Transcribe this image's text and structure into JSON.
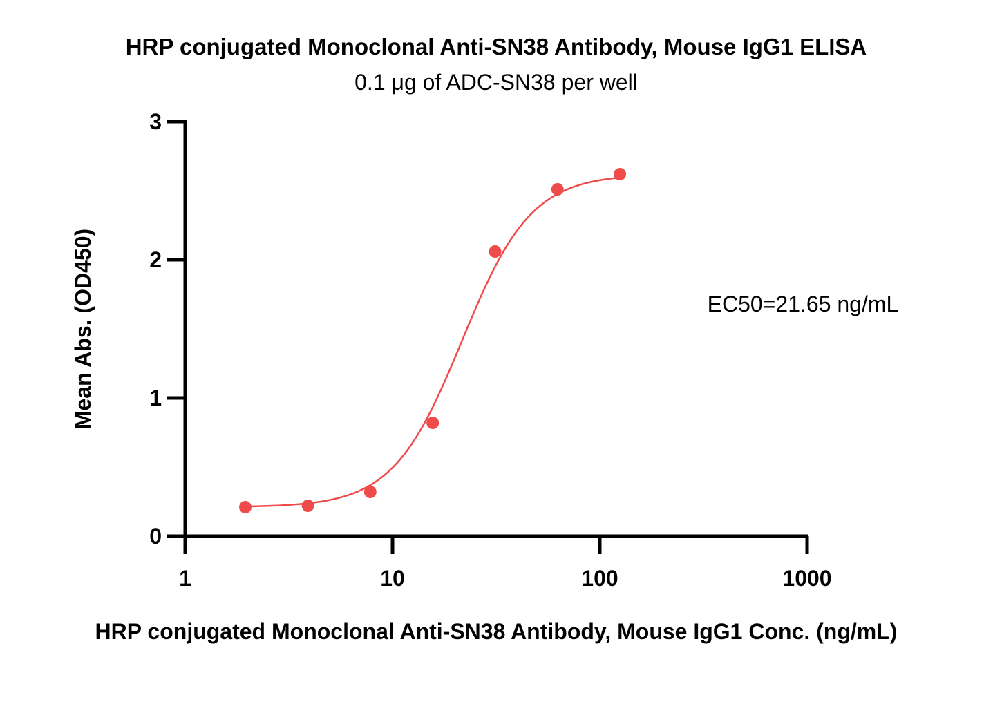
{
  "chart_data": {
    "type": "scatter",
    "title": "HRP conjugated Monoclonal Anti-SN38 Antibody, Mouse IgG1 ELISA",
    "subtitle": "0.1 μg of ADC-SN38 per well",
    "xlabel": "HRP conjugated Monoclonal Anti-SN38 Antibody, Mouse IgG1 Conc. (ng/mL)",
    "ylabel": "Mean Abs. (OD450)",
    "x_scale": "log",
    "xlim": [
      1,
      1000
    ],
    "ylim": [
      0,
      3
    ],
    "x_ticks": [
      "1",
      "10",
      "100",
      "1000"
    ],
    "y_ticks": [
      "0",
      "1",
      "2",
      "3"
    ],
    "grid": false,
    "annotation": "EC50=21.65 ng/mL",
    "color": "#f04b4b",
    "points": [
      {
        "x": 1.95,
        "y": 0.21
      },
      {
        "x": 3.91,
        "y": 0.22
      },
      {
        "x": 7.81,
        "y": 0.32
      },
      {
        "x": 15.63,
        "y": 0.82
      },
      {
        "x": 31.25,
        "y": 2.06
      },
      {
        "x": 62.5,
        "y": 2.51
      },
      {
        "x": 125,
        "y": 2.62
      }
    ],
    "fit": {
      "model": "4PL",
      "bottom": 0.21,
      "top": 2.62,
      "ec50": 21.65,
      "hill": 2.6
    }
  }
}
